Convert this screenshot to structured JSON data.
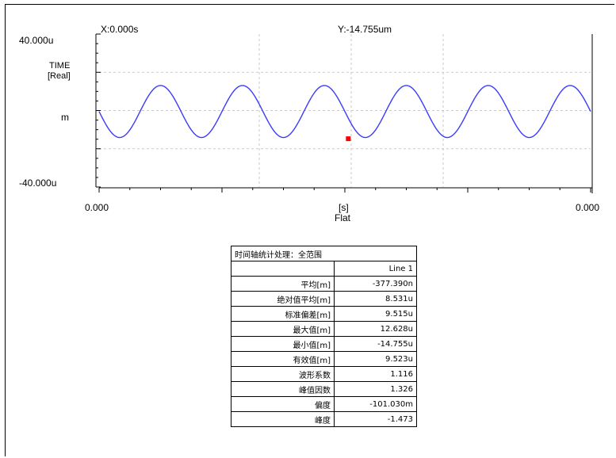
{
  "cursor": {
    "x_readout": "X:0.000s",
    "y_readout": "Y:-14.755um"
  },
  "axis": {
    "y_top": "40.000u",
    "y_bottom": "-40.000u",
    "y_title_1": "TIME",
    "y_title_2": "[Real]",
    "y_unit": "m",
    "x_left": "0.000",
    "x_right": "0.000",
    "x_unit": "[s]",
    "x_window": "Flat"
  },
  "colors": {
    "trace": "#3b3bff",
    "marker": "#ff0000",
    "grid": "#c8c8c8"
  },
  "chart_data": {
    "type": "line",
    "title": "",
    "xlabel": "[s]",
    "ylabel": "[Real]",
    "ylim": [
      -40,
      40
    ],
    "y_unit_scale": "u",
    "cycles": 6,
    "amplitude": 13.6,
    "offset": -0.5,
    "series": [
      {
        "values_desc": "sine"
      }
    ],
    "marker": {
      "cycle_fraction": 0.507,
      "value": -14.755
    }
  },
  "stats_table": {
    "title": "时间轴统计处理：全范围",
    "column_header": "Line 1",
    "rows": [
      {
        "label": "平均[m]",
        "value": "-377.390n"
      },
      {
        "label": "绝对值平均[m]",
        "value": "8.531u"
      },
      {
        "label": "标准偏差[m]",
        "value": "9.515u"
      },
      {
        "label": "最大值[m]",
        "value": "12.628u"
      },
      {
        "label": "最小值[m]",
        "value": "-14.755u"
      },
      {
        "label": "有效值[m]",
        "value": "9.523u"
      },
      {
        "label": "波形系数",
        "value": "1.116"
      },
      {
        "label": "峰值因数",
        "value": "1.326"
      },
      {
        "label": "偏度",
        "value": "-101.030m"
      },
      {
        "label": "峰度",
        "value": "-1.473"
      }
    ]
  }
}
